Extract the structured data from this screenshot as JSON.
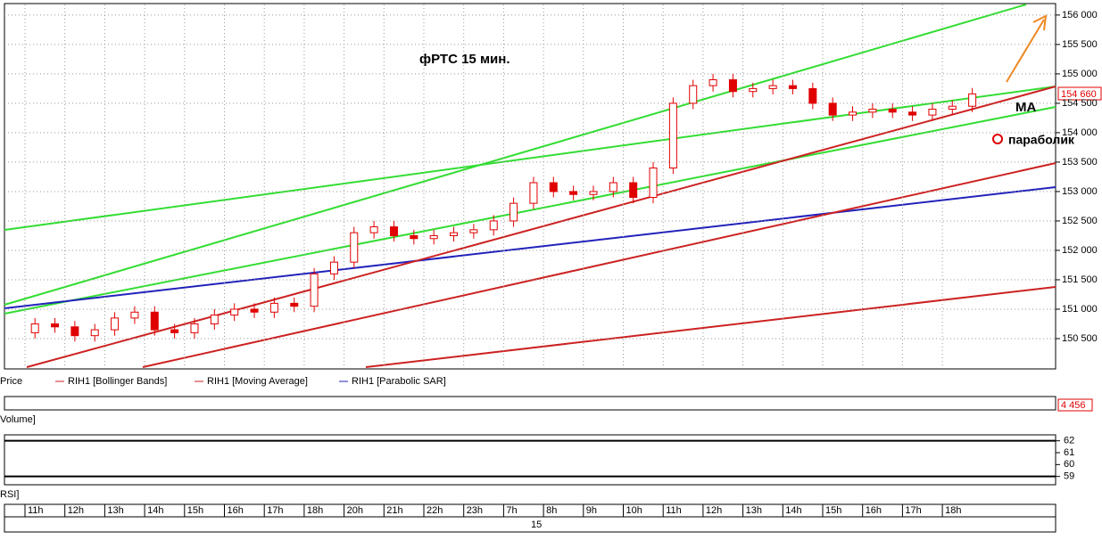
{
  "chart_data": {
    "type": "candlestick",
    "title": "фРТС    15 мин.",
    "annotations": [
      "МА",
      "параболик"
    ],
    "price_label": "154 660",
    "legend": [
      "Price",
      "RIH1 [Bollinger Bands]",
      "RIH1 [Moving Average]",
      "RIH1 [Parabolic SAR]"
    ],
    "volume_label": "Volume]",
    "volume_value": "4 456",
    "rsi_label": "RSI]",
    "rsi_ticks": [
      62,
      61,
      60,
      59
    ],
    "rsi_lim": [
      58.3,
      62.5
    ],
    "date_label": "15",
    "color": "#e00000",
    "categories": [
      "11h",
      null,
      "12h",
      null,
      "13h",
      null,
      "14h",
      null,
      "15h",
      null,
      "16h",
      null,
      "17h",
      null,
      "18h",
      null,
      "20h",
      null,
      "21h",
      null,
      "22h",
      null,
      "23h",
      null,
      "7h",
      null,
      "8h",
      null,
      "9h",
      null,
      "10h",
      null,
      "11h",
      null,
      "12h",
      null,
      "13h",
      null,
      "14h",
      null,
      "15h",
      null,
      "16h",
      null,
      "17h",
      null,
      "18h",
      null
    ],
    "open": [
      150600,
      150750,
      150700,
      150550,
      150650,
      150850,
      150950,
      150650,
      150600,
      150750,
      150900,
      151000,
      150950,
      151100,
      151050,
      151600,
      151800,
      152300,
      152400,
      152250,
      152200,
      152250,
      152300,
      152350,
      152500,
      152800,
      153150,
      153000,
      152950,
      153000,
      153150,
      152900,
      153400,
      154500,
      154800,
      154900,
      154700,
      154750,
      154800,
      154750,
      154500,
      154300,
      154350,
      154400,
      154350,
      154300,
      154400,
      154450
    ],
    "high": [
      150850,
      150850,
      150800,
      150750,
      150950,
      151050,
      151050,
      150750,
      150850,
      151000,
      151100,
      151100,
      151200,
      151200,
      151700,
      151900,
      152400,
      152500,
      152500,
      152350,
      152350,
      152400,
      152450,
      152600,
      152900,
      153250,
      153250,
      153100,
      153100,
      153250,
      153250,
      153500,
      154600,
      154900,
      155000,
      155000,
      154850,
      154900,
      154900,
      154850,
      154600,
      154450,
      154500,
      154500,
      154450,
      154500,
      154550,
      154760
    ],
    "low": [
      150500,
      150600,
      150450,
      150450,
      150550,
      150750,
      150550,
      150500,
      150500,
      150650,
      150800,
      150850,
      150850,
      150950,
      150950,
      151500,
      151700,
      152200,
      152150,
      152100,
      152100,
      152150,
      152200,
      152250,
      152400,
      152700,
      152900,
      152850,
      152850,
      152900,
      152800,
      152800,
      153300,
      154400,
      154700,
      154600,
      154600,
      154650,
      154650,
      154400,
      154200,
      154200,
      154250,
      154250,
      154200,
      154200,
      154300,
      154350
    ],
    "close": [
      150750,
      150700,
      150550,
      150650,
      150850,
      150950,
      150650,
      150600,
      150750,
      150900,
      151000,
      150950,
      151100,
      151050,
      151600,
      151800,
      152300,
      152400,
      152250,
      152200,
      152250,
      152300,
      152350,
      152500,
      152800,
      153150,
      153000,
      152950,
      153000,
      153150,
      152900,
      153400,
      154500,
      154800,
      154900,
      154700,
      154750,
      154800,
      154750,
      154500,
      154300,
      154350,
      154400,
      154350,
      154300,
      154400,
      154450,
      154660
    ],
    "ylim": [
      150000,
      156180
    ],
    "yticks": [
      {
        "value": 150500,
        "label": "150 500"
      },
      {
        "value": 151000,
        "label": "151 000"
      },
      {
        "value": 151500,
        "label": "151 500"
      },
      {
        "value": 152000,
        "label": "152 000"
      },
      {
        "value": 152500,
        "label": "152 500"
      },
      {
        "value": 153000,
        "label": "153 000"
      },
      {
        "value": 153500,
        "label": "153 500"
      },
      {
        "value": 154000,
        "label": "154 000"
      },
      {
        "value": 154500,
        "label": "154 500"
      },
      {
        "value": 155000,
        "label": "155 000"
      },
      {
        "value": 155500,
        "label": "155 500"
      },
      {
        "value": 156000,
        "label": "156 000"
      }
    ],
    "grid": true
  }
}
